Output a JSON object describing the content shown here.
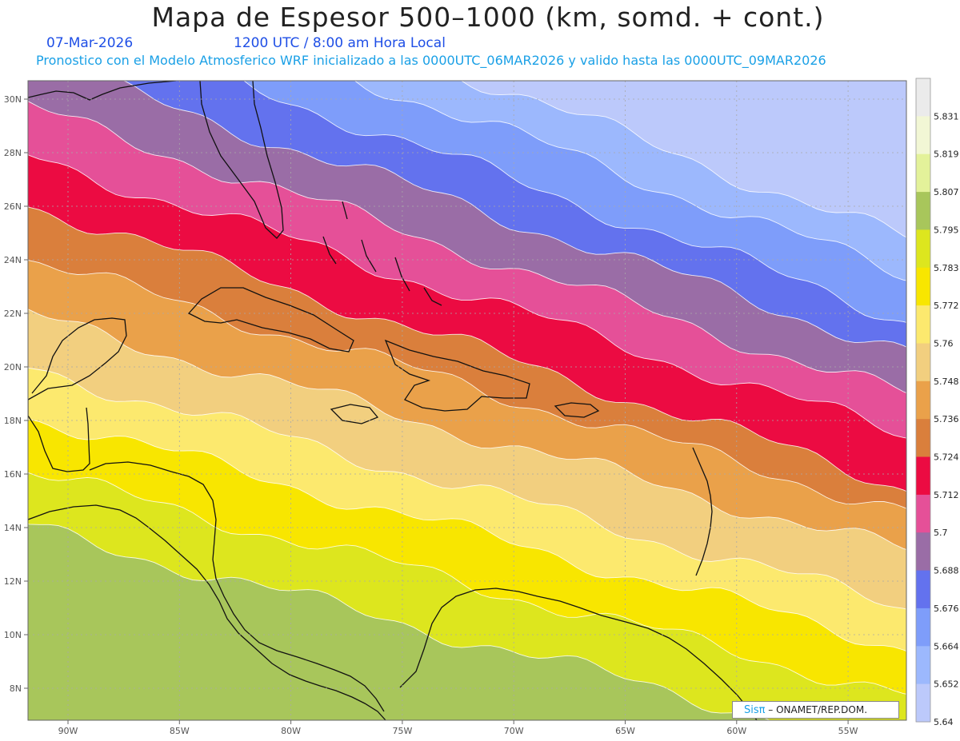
{
  "header": {
    "title": "Mapa de Espesor 500–1000 (km, somd. + cont.)",
    "date": "07-Mar-2026",
    "time": "1200 UTC / 8:00 am Hora Local",
    "subtitle": "Pronostico con el Modelo Atmosferico WRF inicializado a las 0000UTC_06MAR2026 y valido hasta las  0000UTC_09MAR2026"
  },
  "axes": {
    "lat_labels": [
      "30N",
      "28N",
      "26N",
      "24N",
      "22N",
      "20N",
      "18N",
      "16N",
      "14N",
      "12N",
      "10N",
      "8N"
    ],
    "lon_labels": [
      "90W",
      "85W",
      "80W",
      "75W",
      "70W",
      "65W",
      "60W",
      "55W"
    ]
  },
  "colorbar": {
    "labels": [
      "5.831",
      "5.819",
      "5.807",
      "5.795",
      "5.783",
      "5.772",
      "5.76",
      "5.748",
      "5.736",
      "5.724",
      "5.712",
      "5.7",
      "5.688",
      "5.676",
      "5.664",
      "5.652",
      "5.64"
    ],
    "colors": [
      "#ebebeb",
      "#f2f7d5",
      "#e3f29a",
      "#a8c65b",
      "#dde61e",
      "#f8e600",
      "#fce96e",
      "#f2cf7f",
      "#eaa14a",
      "#da7f3c",
      "#ec0b42",
      "#e55098",
      "#9a6da6",
      "#6372ee",
      "#7e9dfa",
      "#9cb8fd",
      "#bcc9fb"
    ]
  },
  "map_bands": [
    "#bcc9fb",
    "#9cb8fd",
    "#7e9dfa",
    "#6372ee",
    "#9a6da6",
    "#e55098",
    "#ec0b42",
    "#da7f3c",
    "#eaa14a",
    "#f2cf7f",
    "#fce96e",
    "#f8e600",
    "#dde61e",
    "#a8c65b"
  ],
  "logo": {
    "brand": "Sisπ",
    "org": "– ONAMET/REP.DOM."
  }
}
